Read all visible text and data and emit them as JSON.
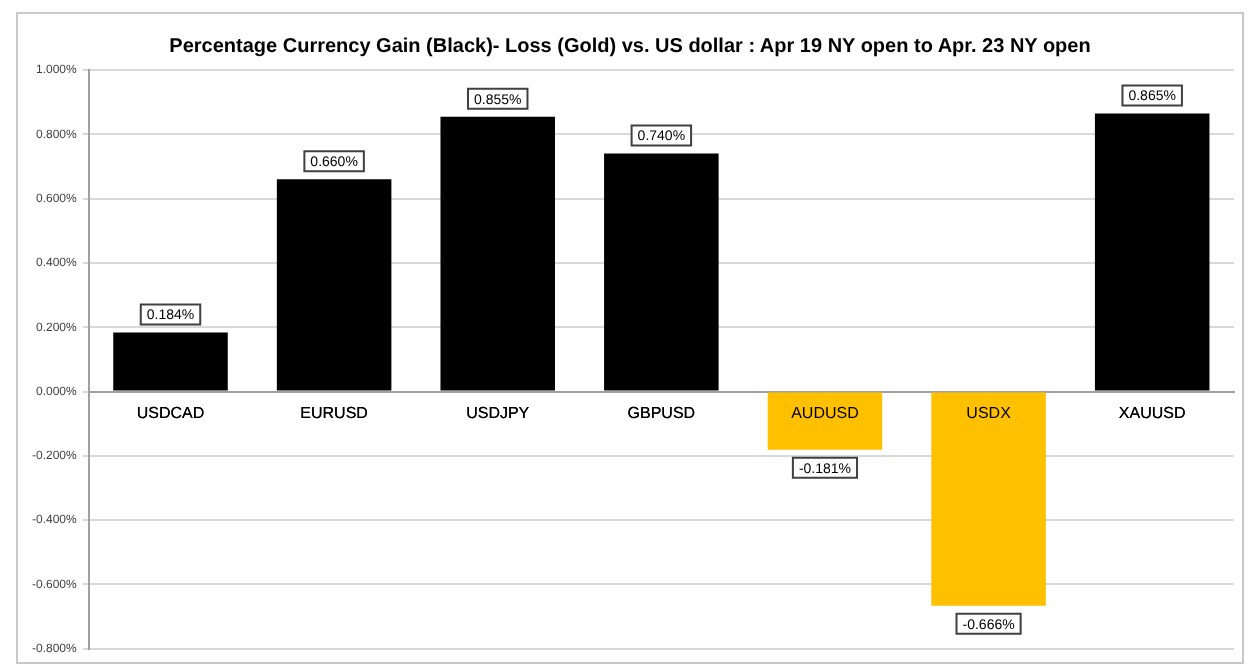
{
  "chart_data": {
    "type": "bar",
    "title": "Percentage Currency Gain (Black)- Loss (Gold) vs. US dollar : Apr 19 NY open to Apr. 23 NY open",
    "categories": [
      "USDCAD",
      "EURUSD",
      "USDJPY",
      "GBPUSD",
      "AUDUSD",
      "USDX",
      "XAUUSD"
    ],
    "values": [
      0.184,
      0.66,
      0.855,
      0.74,
      -0.181,
      -0.666,
      0.865
    ],
    "colors": [
      "#000000",
      "#000000",
      "#000000",
      "#000000",
      "#ffc000",
      "#ffc000",
      "#000000"
    ],
    "value_labels": [
      "0.184%",
      "0.660%",
      "0.855%",
      "0.740%",
      "-0.181%",
      "-0.666%",
      "0.865%"
    ],
    "ylim": [
      -0.8,
      1
    ],
    "yticks": [
      {
        "value": -0.8,
        "label": "-0.800%"
      },
      {
        "value": -0.6,
        "label": "-0.600%"
      },
      {
        "value": -0.4,
        "label": "-0.400%"
      },
      {
        "value": -0.2,
        "label": "-0.200%"
      },
      {
        "value": 0,
        "label": "0.000%"
      },
      {
        "value": 0.2,
        "label": "0.200%"
      },
      {
        "value": 0.4,
        "label": "0.400%"
      },
      {
        "value": 0.6,
        "label": "0.600%"
      },
      {
        "value": 0.8,
        "label": "0.800%"
      },
      {
        "value": 1,
        "label": "1.000%"
      }
    ],
    "grid": "y"
  }
}
